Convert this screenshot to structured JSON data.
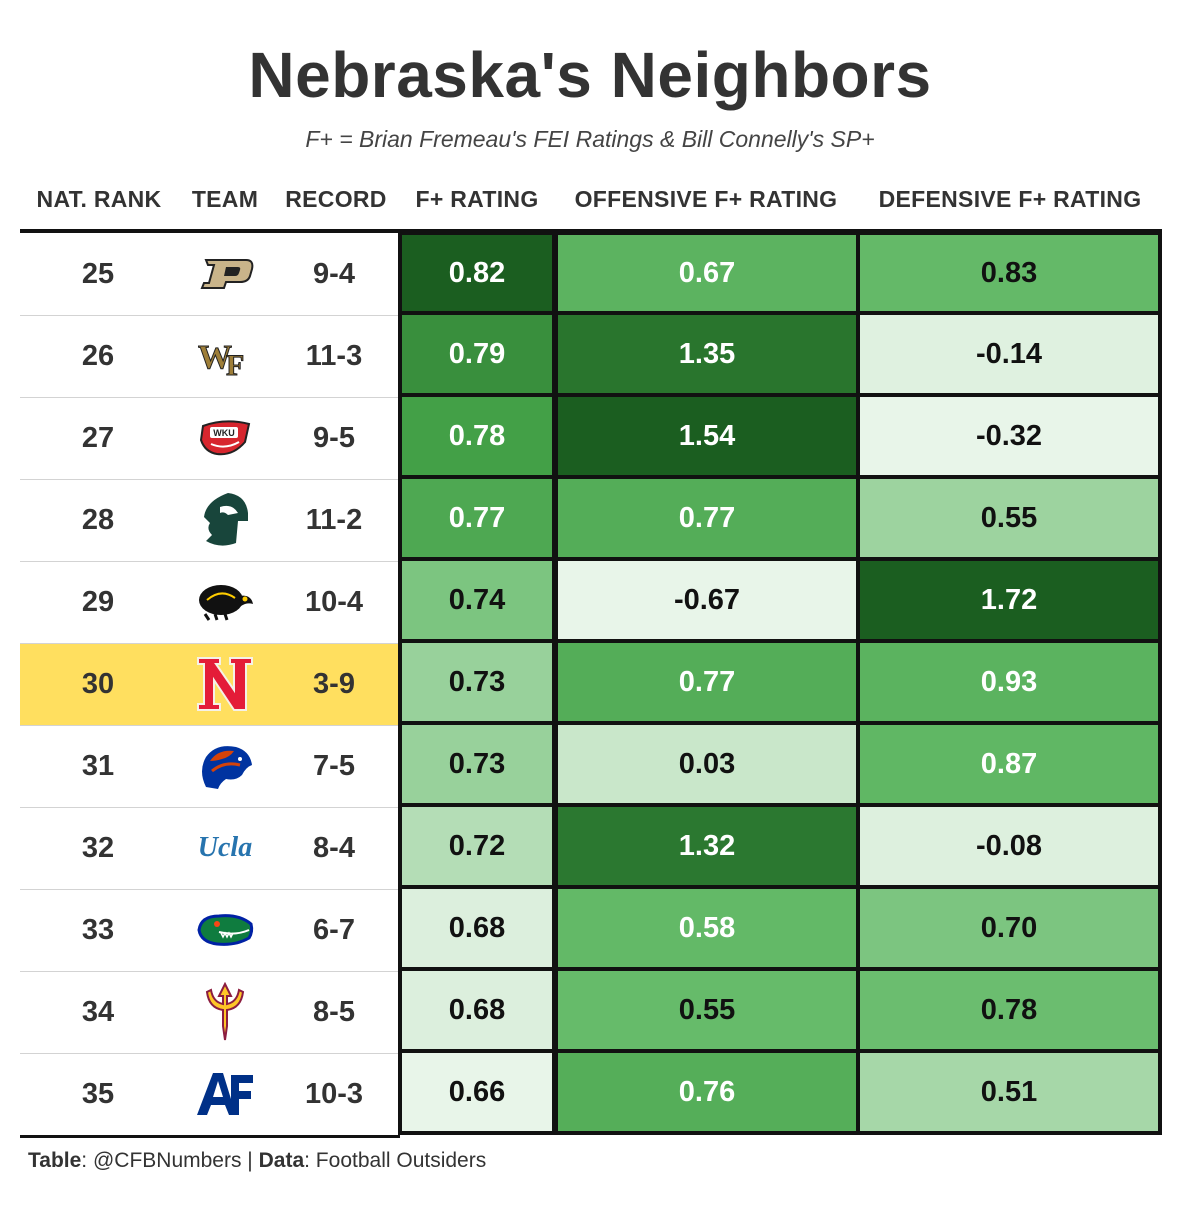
{
  "title": "Nebraska's Neighbors",
  "subtitle": "F+ = Brian Fremeau's FEI Ratings & Bill Connelly's SP+",
  "columns": {
    "rank": "NAT. RANK",
    "team": "TEAM",
    "record": "RECORD",
    "f_rating": "F+ RATING",
    "off_rating": "OFFENSIVE F+ RATING",
    "def_rating": "DEFENSIVE F+ RATING"
  },
  "caption": {
    "table_label": "Table",
    "table_value": ": @CFBNumbers | ",
    "data_label": "Data",
    "data_value": ": Football Outsiders"
  },
  "colors": {
    "highlight": "#ffdf5f",
    "dark_green": "#1c5e20",
    "light_green": "#e8f5e9",
    "border": "#111111"
  },
  "chart_data": {
    "type": "table",
    "highlight_rank": "30",
    "rows": [
      {
        "rank": "25",
        "logo": "purdue-logo",
        "record": "9-4",
        "f_rating": "0.82",
        "off_rating": "0.67",
        "def_rating": "0.83"
      },
      {
        "rank": "26",
        "logo": "wake-forest-logo",
        "record": "11-3",
        "f_rating": "0.79",
        "off_rating": "1.35",
        "def_rating": "-0.14"
      },
      {
        "rank": "27",
        "logo": "wku-logo",
        "record": "9-5",
        "f_rating": "0.78",
        "off_rating": "1.54",
        "def_rating": "-0.32"
      },
      {
        "rank": "28",
        "logo": "michigan-state-logo",
        "record": "11-2",
        "f_rating": "0.77",
        "off_rating": "0.77",
        "def_rating": "0.55"
      },
      {
        "rank": "29",
        "logo": "iowa-logo",
        "record": "10-4",
        "f_rating": "0.74",
        "off_rating": "-0.67",
        "def_rating": "1.72"
      },
      {
        "rank": "30",
        "logo": "nebraska-logo",
        "record": "3-9",
        "f_rating": "0.73",
        "off_rating": "0.77",
        "def_rating": "0.93"
      },
      {
        "rank": "31",
        "logo": "boise-state-logo",
        "record": "7-5",
        "f_rating": "0.73",
        "off_rating": "0.03",
        "def_rating": "0.87"
      },
      {
        "rank": "32",
        "logo": "ucla-logo",
        "record": "8-4",
        "f_rating": "0.72",
        "off_rating": "1.32",
        "def_rating": "-0.08"
      },
      {
        "rank": "33",
        "logo": "florida-logo",
        "record": "6-7",
        "f_rating": "0.68",
        "off_rating": "0.58",
        "def_rating": "0.70"
      },
      {
        "rank": "34",
        "logo": "arizona-state-logo",
        "record": "8-5",
        "f_rating": "0.68",
        "off_rating": "0.55",
        "def_rating": "0.78"
      },
      {
        "rank": "35",
        "logo": "air-force-logo",
        "record": "10-3",
        "f_rating": "0.66",
        "off_rating": "0.76",
        "def_rating": "0.51"
      }
    ]
  }
}
